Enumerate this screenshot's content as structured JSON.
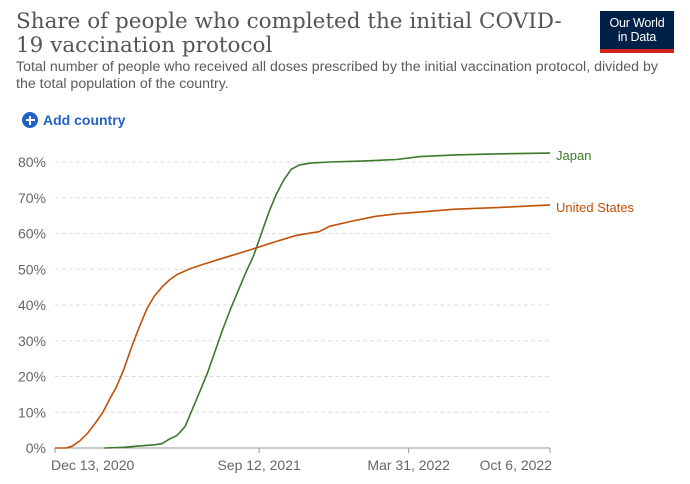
{
  "title": "Share of people who completed the initial COVID-19 vaccination protocol",
  "subtitle": "Total number of people who received all doses prescribed by the initial vaccination protocol, divided by the total population of the country.",
  "logo": {
    "line1": "Our World",
    "line2": "in Data",
    "bg_color": "#002147",
    "accent_color": "#ce261e"
  },
  "controls": {
    "add_country_label": "Add country",
    "icon": "plus-circle-icon",
    "color": "#2262c6"
  },
  "chart_data": {
    "type": "line",
    "title": "Share of people who completed the initial COVID-19 vaccination protocol",
    "xlabel": "",
    "ylabel": "",
    "x_ticks": [
      "Dec 13, 2020",
      "Sep 12, 2021",
      "Mar 31, 2022",
      "Oct 6, 2022"
    ],
    "x_range": [
      "2020-12-13",
      "2022-10-06"
    ],
    "y_ticks": [
      "0%",
      "10%",
      "20%",
      "30%",
      "40%",
      "50%",
      "60%",
      "70%",
      "80%"
    ],
    "ylim": [
      0,
      80
    ],
    "grid": "horizontal dashed",
    "series": [
      {
        "name": "Japan",
        "color": "#3a7a2a",
        "points": [
          [
            "2021-02-17",
            0
          ],
          [
            "2021-03-15",
            0.2
          ],
          [
            "2021-04-01",
            0.5
          ],
          [
            "2021-04-25",
            0.9
          ],
          [
            "2021-05-05",
            1.2
          ],
          [
            "2021-05-15",
            2.5
          ],
          [
            "2021-05-25",
            3.5
          ],
          [
            "2021-06-05",
            6
          ],
          [
            "2021-06-15",
            11
          ],
          [
            "2021-06-25",
            16
          ],
          [
            "2021-07-05",
            21
          ],
          [
            "2021-07-15",
            27
          ],
          [
            "2021-07-25",
            33
          ],
          [
            "2021-08-05",
            39
          ],
          [
            "2021-08-15",
            44
          ],
          [
            "2021-08-25",
            49
          ],
          [
            "2021-09-05",
            54
          ],
          [
            "2021-09-15",
            60
          ],
          [
            "2021-09-25",
            66
          ],
          [
            "2021-10-05",
            71
          ],
          [
            "2021-10-15",
            75
          ],
          [
            "2021-10-25",
            78
          ],
          [
            "2021-11-05",
            79.2
          ],
          [
            "2021-11-20",
            79.7
          ],
          [
            "2021-12-15",
            80
          ],
          [
            "2022-02-01",
            80.3
          ],
          [
            "2022-03-15",
            80.7
          ],
          [
            "2022-04-15",
            81.5
          ],
          [
            "2022-06-01",
            82
          ],
          [
            "2022-08-01",
            82.3
          ],
          [
            "2022-10-06",
            82.5
          ]
        ]
      },
      {
        "name": "United States",
        "color": "#c15008",
        "points": [
          [
            "2020-12-13",
            0
          ],
          [
            "2020-12-28",
            0
          ],
          [
            "2021-01-05",
            0.5
          ],
          [
            "2021-01-15",
            2
          ],
          [
            "2021-01-25",
            4
          ],
          [
            "2021-02-05",
            7
          ],
          [
            "2021-02-15",
            10
          ],
          [
            "2021-02-25",
            14
          ],
          [
            "2021-03-05",
            17
          ],
          [
            "2021-03-15",
            22
          ],
          [
            "2021-03-25",
            28
          ],
          [
            "2021-04-05",
            34
          ],
          [
            "2021-04-15",
            39
          ],
          [
            "2021-04-25",
            42.5
          ],
          [
            "2021-05-05",
            45
          ],
          [
            "2021-05-15",
            47
          ],
          [
            "2021-05-25",
            48.5
          ],
          [
            "2021-06-10",
            50
          ],
          [
            "2021-07-01",
            51.5
          ],
          [
            "2021-08-01",
            53.5
          ],
          [
            "2021-09-01",
            55.5
          ],
          [
            "2021-10-01",
            57.5
          ],
          [
            "2021-11-01",
            59.5
          ],
          [
            "2021-12-01",
            60.5
          ],
          [
            "2021-12-15",
            62
          ],
          [
            "2022-01-15",
            63.5
          ],
          [
            "2022-02-15",
            64.8
          ],
          [
            "2022-03-15",
            65.5
          ],
          [
            "2022-04-15",
            66
          ],
          [
            "2022-06-01",
            66.8
          ],
          [
            "2022-08-01",
            67.3
          ],
          [
            "2022-10-06",
            68
          ]
        ]
      }
    ]
  }
}
